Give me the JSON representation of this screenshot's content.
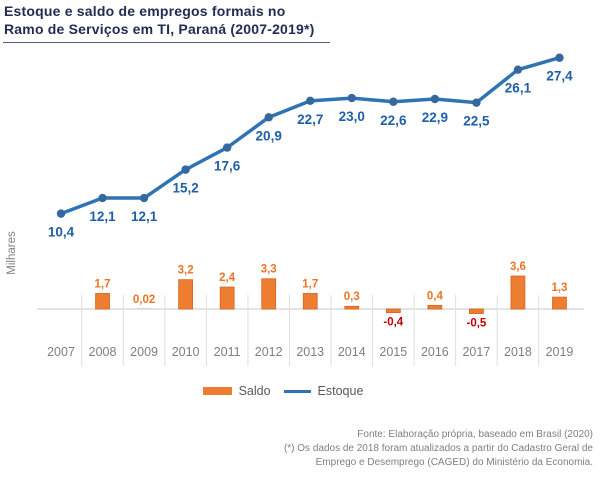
{
  "title": {
    "line1": "Estoque e saldo de empregos formais no",
    "line2": "Ramo de Serviços em TI, Paraná (2007-2019*)"
  },
  "legend": {
    "saldo_label": "Saldo",
    "estoque_label": "Estoque"
  },
  "footer": {
    "lines": [
      "Fonte: Elaboração própria, baseado em Brasil (2020)",
      "(*) Os dados de 2018 foram atualizados a partir do Cadastro Geral de",
      "Emprego e Desemprego (CAGED) do Ministério da Economia."
    ]
  },
  "colors": {
    "title": "#232C52",
    "saldo_bar": "#ED7D31",
    "saldo_bar_border": "#D8641F",
    "estoque_line": "#2E74B5",
    "estoque_marker": "#35689E",
    "estoque_label": "#1F5FA8",
    "saldo_label_positive": "#ED7425",
    "saldo_label_negative": "#C00000",
    "axis_text": "#7F7F7F",
    "gridline": "#DEDEDE",
    "zero_line": "#E3E3E3"
  },
  "chart_data": {
    "type": "combo-bar-line",
    "title": "Estoque e saldo de empregos formais no Ramo de Serviços em TI, Paraná (2007-2019*)",
    "ylabel": "Milhares",
    "xlabel": "",
    "categories": [
      "2007",
      "2008",
      "2009",
      "2010",
      "2011",
      "2012",
      "2013",
      "2014",
      "2015",
      "2016",
      "2017",
      "2018",
      "2019"
    ],
    "series": [
      {
        "name": "Saldo",
        "type": "bar",
        "color": "#ED7D31",
        "values": [
          null,
          1.7,
          0.02,
          3.2,
          2.4,
          3.3,
          1.7,
          0.3,
          -0.4,
          0.4,
          -0.5,
          3.6,
          1.3
        ],
        "labels": [
          "",
          "1,7",
          "0,02",
          "3,2",
          "2,4",
          "3,3",
          "1,7",
          "0,3",
          "-0,4",
          "0,4",
          "-0,5",
          "3,6",
          "1,3"
        ]
      },
      {
        "name": "Estoque",
        "type": "line",
        "color": "#2E74B5",
        "values": [
          10.4,
          12.1,
          12.1,
          15.2,
          17.6,
          20.9,
          22.7,
          23.0,
          22.6,
          22.9,
          22.5,
          26.1,
          27.4
        ],
        "labels": [
          "10,4",
          "12,1",
          "12,1",
          "15,2",
          "17,6",
          "20,9",
          "22,7",
          "23,0",
          "22,6",
          "22,9",
          "22,5",
          "26,1",
          "27,4"
        ]
      }
    ],
    "unit": "milhares (thousands of formal jobs)",
    "ylim": [
      -2,
      29
    ],
    "grid": "vertical category separators only",
    "zero_baseline": true,
    "legend_position": "bottom-center"
  }
}
